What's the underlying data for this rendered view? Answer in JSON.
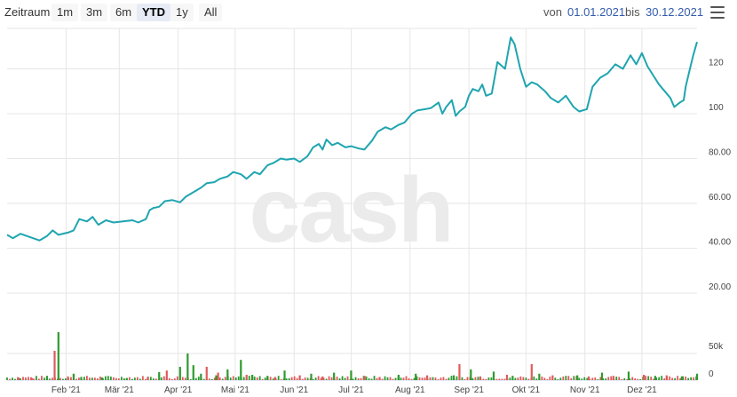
{
  "toolbar": {
    "zoom_label": "Zeitraum",
    "buttons": [
      {
        "label": "1m",
        "selected": false
      },
      {
        "label": "3m",
        "selected": false
      },
      {
        "label": "6m",
        "selected": false
      },
      {
        "label": "YTD",
        "selected": true
      },
      {
        "label": "1y",
        "selected": false
      },
      {
        "label": "All",
        "selected": false
      }
    ],
    "from_label": "von",
    "from_value": "01.01.2021",
    "to_label": "bis",
    "to_value": "30.12.2021",
    "menu_icon": "hamburger-menu-icon"
  },
  "watermark": "cash",
  "colors": {
    "line": "#1fa5b0",
    "volume_up": "#2e9a2e",
    "volume_down": "#e05a5a",
    "grid": "#e6e6e6"
  },
  "chart_data": {
    "type": "line",
    "x_start": "2021-01-01",
    "x_end": "2021-12-30",
    "price_axis": {
      "ticks": [
        20,
        40,
        60,
        80,
        100,
        120
      ],
      "tick_labels": [
        "20.00",
        "40.00",
        "60.00",
        "80.00",
        "100",
        "120"
      ],
      "range": [
        5,
        138
      ]
    },
    "volume_axis": {
      "ticks": [
        50000
      ],
      "tick_labels": [
        "50k"
      ],
      "range": [
        0,
        100000
      ]
    },
    "x_ticks": [
      "Feb '21",
      "Mär '21",
      "Apr '21",
      "Mai '21",
      "Jun '21",
      "Jul '21",
      "Aug '21",
      "Sep '21",
      "Okt '21",
      "Nov '21",
      "Dez '21"
    ],
    "price_series": [
      [
        "2021-01-01",
        46
      ],
      [
        "2021-01-04",
        44.5
      ],
      [
        "2021-01-08",
        46.5
      ],
      [
        "2021-01-13",
        45
      ],
      [
        "2021-01-18",
        43.5
      ],
      [
        "2021-01-22",
        45.5
      ],
      [
        "2021-01-25",
        48
      ],
      [
        "2021-01-28",
        46
      ],
      [
        "2021-02-02",
        47
      ],
      [
        "2021-02-05",
        48
      ],
      [
        "2021-02-08",
        53
      ],
      [
        "2021-02-12",
        52
      ],
      [
        "2021-02-15",
        54
      ],
      [
        "2021-02-18",
        50.5
      ],
      [
        "2021-02-22",
        52.5
      ],
      [
        "2021-02-26",
        51.5
      ],
      [
        "2021-03-03",
        52
      ],
      [
        "2021-03-08",
        52.5
      ],
      [
        "2021-03-11",
        51.5
      ],
      [
        "2021-03-15",
        53
      ],
      [
        "2021-03-17",
        57
      ],
      [
        "2021-03-19",
        58
      ],
      [
        "2021-03-22",
        58.5
      ],
      [
        "2021-03-25",
        61
      ],
      [
        "2021-03-29",
        61.5
      ],
      [
        "2021-04-02",
        60.5
      ],
      [
        "2021-04-05",
        63
      ],
      [
        "2021-04-09",
        65
      ],
      [
        "2021-04-13",
        67
      ],
      [
        "2021-04-16",
        69
      ],
      [
        "2021-04-20",
        69.5
      ],
      [
        "2021-04-23",
        71
      ],
      [
        "2021-04-27",
        72
      ],
      [
        "2021-04-30",
        74
      ],
      [
        "2021-05-04",
        73
      ],
      [
        "2021-05-07",
        71
      ],
      [
        "2021-05-11",
        74
      ],
      [
        "2021-05-14",
        73
      ],
      [
        "2021-05-18",
        77
      ],
      [
        "2021-05-21",
        78
      ],
      [
        "2021-05-25",
        80
      ],
      [
        "2021-05-28",
        79.5
      ],
      [
        "2021-06-01",
        80
      ],
      [
        "2021-06-04",
        78.5
      ],
      [
        "2021-06-08",
        81
      ],
      [
        "2021-06-11",
        85
      ],
      [
        "2021-06-14",
        86.5
      ],
      [
        "2021-06-16",
        84
      ],
      [
        "2021-06-18",
        88.5
      ],
      [
        "2021-06-21",
        86
      ],
      [
        "2021-06-24",
        87
      ],
      [
        "2021-06-28",
        85
      ],
      [
        "2021-07-01",
        85.5
      ],
      [
        "2021-07-05",
        84.5
      ],
      [
        "2021-07-08",
        84
      ],
      [
        "2021-07-12",
        88
      ],
      [
        "2021-07-15",
        92
      ],
      [
        "2021-07-19",
        94
      ],
      [
        "2021-07-22",
        93
      ],
      [
        "2021-07-26",
        95
      ],
      [
        "2021-07-29",
        96
      ],
      [
        "2021-08-02",
        100
      ],
      [
        "2021-08-05",
        101.5
      ],
      [
        "2021-08-09",
        102
      ],
      [
        "2021-08-12",
        102.5
      ],
      [
        "2021-08-16",
        105
      ],
      [
        "2021-08-18",
        100
      ],
      [
        "2021-08-20",
        103
      ],
      [
        "2021-08-23",
        106
      ],
      [
        "2021-08-25",
        99
      ],
      [
        "2021-08-27",
        101
      ],
      [
        "2021-08-30",
        103
      ],
      [
        "2021-09-01",
        108
      ],
      [
        "2021-09-03",
        111
      ],
      [
        "2021-09-06",
        110
      ],
      [
        "2021-09-08",
        113
      ],
      [
        "2021-09-10",
        108
      ],
      [
        "2021-09-13",
        109
      ],
      [
        "2021-09-16",
        123
      ],
      [
        "2021-09-20",
        120
      ],
      [
        "2021-09-23",
        134
      ],
      [
        "2021-09-25",
        131
      ],
      [
        "2021-09-28",
        120
      ],
      [
        "2021-10-01",
        112
      ],
      [
        "2021-10-04",
        114
      ],
      [
        "2021-10-07",
        113
      ],
      [
        "2021-10-11",
        110
      ],
      [
        "2021-10-14",
        107
      ],
      [
        "2021-10-18",
        105
      ],
      [
        "2021-10-22",
        108
      ],
      [
        "2021-10-26",
        103
      ],
      [
        "2021-10-29",
        101
      ],
      [
        "2021-11-02",
        102
      ],
      [
        "2021-11-05",
        112
      ],
      [
        "2021-11-09",
        116
      ],
      [
        "2021-11-13",
        118
      ],
      [
        "2021-11-17",
        122
      ],
      [
        "2021-11-21",
        120
      ],
      [
        "2021-11-25",
        126
      ],
      [
        "2021-11-28",
        122
      ],
      [
        "2021-12-01",
        127
      ],
      [
        "2021-12-04",
        121
      ],
      [
        "2021-12-07",
        117
      ],
      [
        "2021-12-10",
        113
      ],
      [
        "2021-12-13",
        110
      ],
      [
        "2021-12-16",
        107
      ],
      [
        "2021-12-18",
        103
      ],
      [
        "2021-12-21",
        105
      ],
      [
        "2021-12-23",
        106
      ],
      [
        "2021-12-24",
        112
      ],
      [
        "2021-12-26",
        119
      ],
      [
        "2021-12-28",
        126
      ],
      [
        "2021-12-30",
        132
      ]
    ],
    "volume_up": [
      [
        "2021-01-22",
        8000
      ],
      [
        "2021-01-28",
        90000
      ],
      [
        "2021-02-05",
        12000
      ],
      [
        "2021-02-09",
        6000
      ],
      [
        "2021-02-20",
        5000
      ],
      [
        "2021-03-05",
        4000
      ],
      [
        "2021-03-22",
        15000
      ],
      [
        "2021-04-02",
        25000
      ],
      [
        "2021-04-06",
        50000
      ],
      [
        "2021-04-09",
        28000
      ],
      [
        "2021-04-13",
        12000
      ],
      [
        "2021-04-21",
        9000
      ],
      [
        "2021-04-27",
        20000
      ],
      [
        "2021-05-04",
        38000
      ],
      [
        "2021-05-10",
        10000
      ],
      [
        "2021-05-18",
        8000
      ],
      [
        "2021-05-27",
        18000
      ],
      [
        "2021-06-10",
        12000
      ],
      [
        "2021-06-22",
        14000
      ],
      [
        "2021-07-01",
        18000
      ],
      [
        "2021-07-26",
        10000
      ],
      [
        "2021-08-04",
        12000
      ],
      [
        "2021-08-24",
        9000
      ],
      [
        "2021-09-02",
        20000
      ],
      [
        "2021-09-14",
        16000
      ],
      [
        "2021-09-24",
        8000
      ],
      [
        "2021-10-08",
        12000
      ],
      [
        "2021-10-28",
        9000
      ],
      [
        "2021-11-10",
        14000
      ],
      [
        "2021-11-24",
        16000
      ],
      [
        "2021-12-08",
        8000
      ],
      [
        "2021-12-22",
        7000
      ],
      [
        "2021-12-30",
        12000
      ]
    ],
    "volume_down": [
      [
        "2021-01-07",
        5000
      ],
      [
        "2021-01-14",
        4000
      ],
      [
        "2021-01-26",
        55000
      ],
      [
        "2021-02-02",
        7000
      ],
      [
        "2021-03-16",
        6000
      ],
      [
        "2021-03-26",
        18000
      ],
      [
        "2021-04-16",
        25000
      ],
      [
        "2021-04-22",
        14000
      ],
      [
        "2021-05-07",
        10000
      ],
      [
        "2021-05-22",
        6000
      ],
      [
        "2021-06-04",
        9000
      ],
      [
        "2021-06-16",
        7000
      ],
      [
        "2021-07-08",
        8000
      ],
      [
        "2021-07-16",
        6000
      ],
      [
        "2021-08-10",
        9000
      ],
      [
        "2021-08-27",
        30000
      ],
      [
        "2021-09-07",
        7000
      ],
      [
        "2021-09-21",
        10000
      ],
      [
        "2021-10-04",
        30000
      ],
      [
        "2021-10-15",
        9000
      ],
      [
        "2021-11-03",
        7000
      ],
      [
        "2021-11-16",
        8000
      ],
      [
        "2021-12-02",
        10000
      ],
      [
        "2021-12-14",
        9000
      ]
    ]
  }
}
